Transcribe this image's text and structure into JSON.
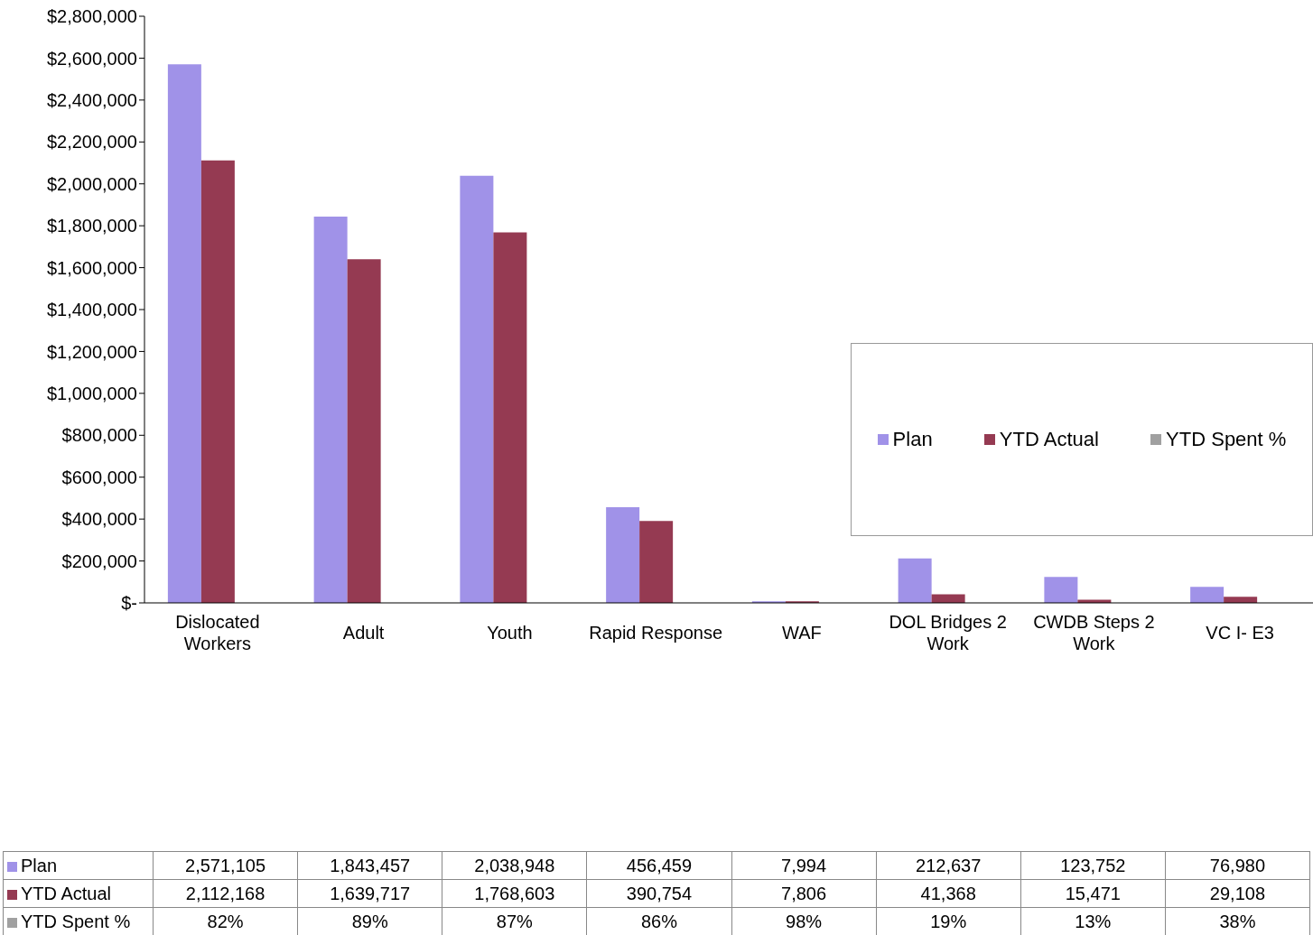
{
  "chart_data": {
    "type": "bar",
    "categories": [
      "Dislocated Workers",
      "Adult",
      "Youth",
      "Rapid Response",
      "WAF",
      "DOL Bridges 2 Work",
      "CWDB Steps 2 Work",
      "VC I- E3"
    ],
    "series": [
      {
        "name": "Plan",
        "color": "#a092e8",
        "values": [
          2571105,
          1843457,
          2038948,
          456459,
          7994,
          212637,
          123752,
          76980
        ],
        "value_labels": [
          "2,571,105",
          "1,843,457",
          "2,038,948",
          "456,459",
          "7,994",
          "212,637",
          "123,752",
          "76,980"
        ]
      },
      {
        "name": "YTD Actual",
        "color": "#953a52",
        "values": [
          2112168,
          1639717,
          1768603,
          390754,
          7806,
          41368,
          15471,
          29108
        ],
        "value_labels": [
          "2,112,168",
          "1,639,717",
          "1,768,603",
          "390,754",
          "7,806",
          "41,368",
          "15,471",
          "29,108"
        ]
      },
      {
        "name": "YTD Spent %",
        "color": "#a0a0a0",
        "values": [
          0.82,
          0.89,
          0.87,
          0.86,
          0.98,
          0.19,
          0.13,
          0.38
        ],
        "value_labels": [
          "82%",
          "89%",
          "87%",
          "86%",
          "98%",
          "19%",
          "13%",
          "38%"
        ]
      }
    ],
    "ylim": [
      0,
      2800000
    ],
    "yticks": [
      {
        "value": 0,
        "label": "$-"
      },
      {
        "value": 200000,
        "label": "$200,000"
      },
      {
        "value": 400000,
        "label": "$400,000"
      },
      {
        "value": 600000,
        "label": "$600,000"
      },
      {
        "value": 800000,
        "label": "$800,000"
      },
      {
        "value": 1000000,
        "label": "$1,000,000"
      },
      {
        "value": 1200000,
        "label": "$1,200,000"
      },
      {
        "value": 1400000,
        "label": "$1,400,000"
      },
      {
        "value": 1600000,
        "label": "$1,600,000"
      },
      {
        "value": 1800000,
        "label": "$1,800,000"
      },
      {
        "value": 2000000,
        "label": "$2,000,000"
      },
      {
        "value": 2200000,
        "label": "$2,200,000"
      },
      {
        "value": 2400000,
        "label": "$2,400,000"
      },
      {
        "value": 2600000,
        "label": "$2,600,000"
      },
      {
        "value": 2800000,
        "label": "$2,800,000"
      }
    ],
    "legend": "right"
  }
}
